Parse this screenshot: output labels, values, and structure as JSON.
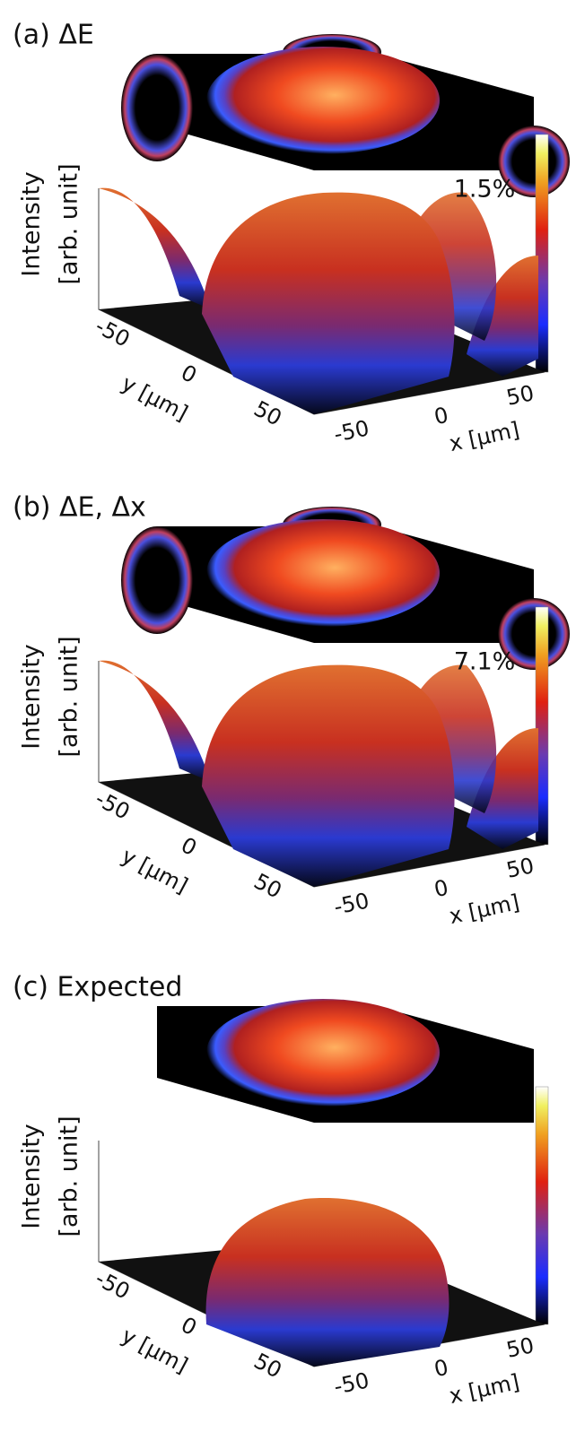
{
  "chart_data": [
    {
      "type": "surface3d",
      "title": "(a) ΔE",
      "ylabel": "Intensity",
      "ylabel_unit": "[arb. unit]",
      "annotation": "1.5%",
      "xlabel": "x [μm]",
      "xticks": [
        -50,
        0,
        50
      ],
      "depth_label": "y [μm]",
      "depth_ticks": [
        -50,
        0,
        50
      ]
    },
    {
      "type": "surface3d",
      "title": "(b) ΔE, Δx",
      "ylabel": "Intensity",
      "ylabel_unit": "[arb. unit]",
      "annotation": "7.1%",
      "xlabel": "x [μm]",
      "xticks": [
        -50,
        0,
        50
      ],
      "depth_label": "y [μm]",
      "depth_ticks": [
        -50,
        0,
        50
      ]
    },
    {
      "type": "surface3d",
      "title": "(c) Expected",
      "ylabel": "Intensity",
      "ylabel_unit": "[arb. unit]",
      "xlabel": "x [μm]",
      "xticks": [
        -50,
        0,
        50
      ],
      "depth_label": "y [μm]",
      "depth_ticks": [
        -50,
        0,
        50
      ]
    }
  ]
}
